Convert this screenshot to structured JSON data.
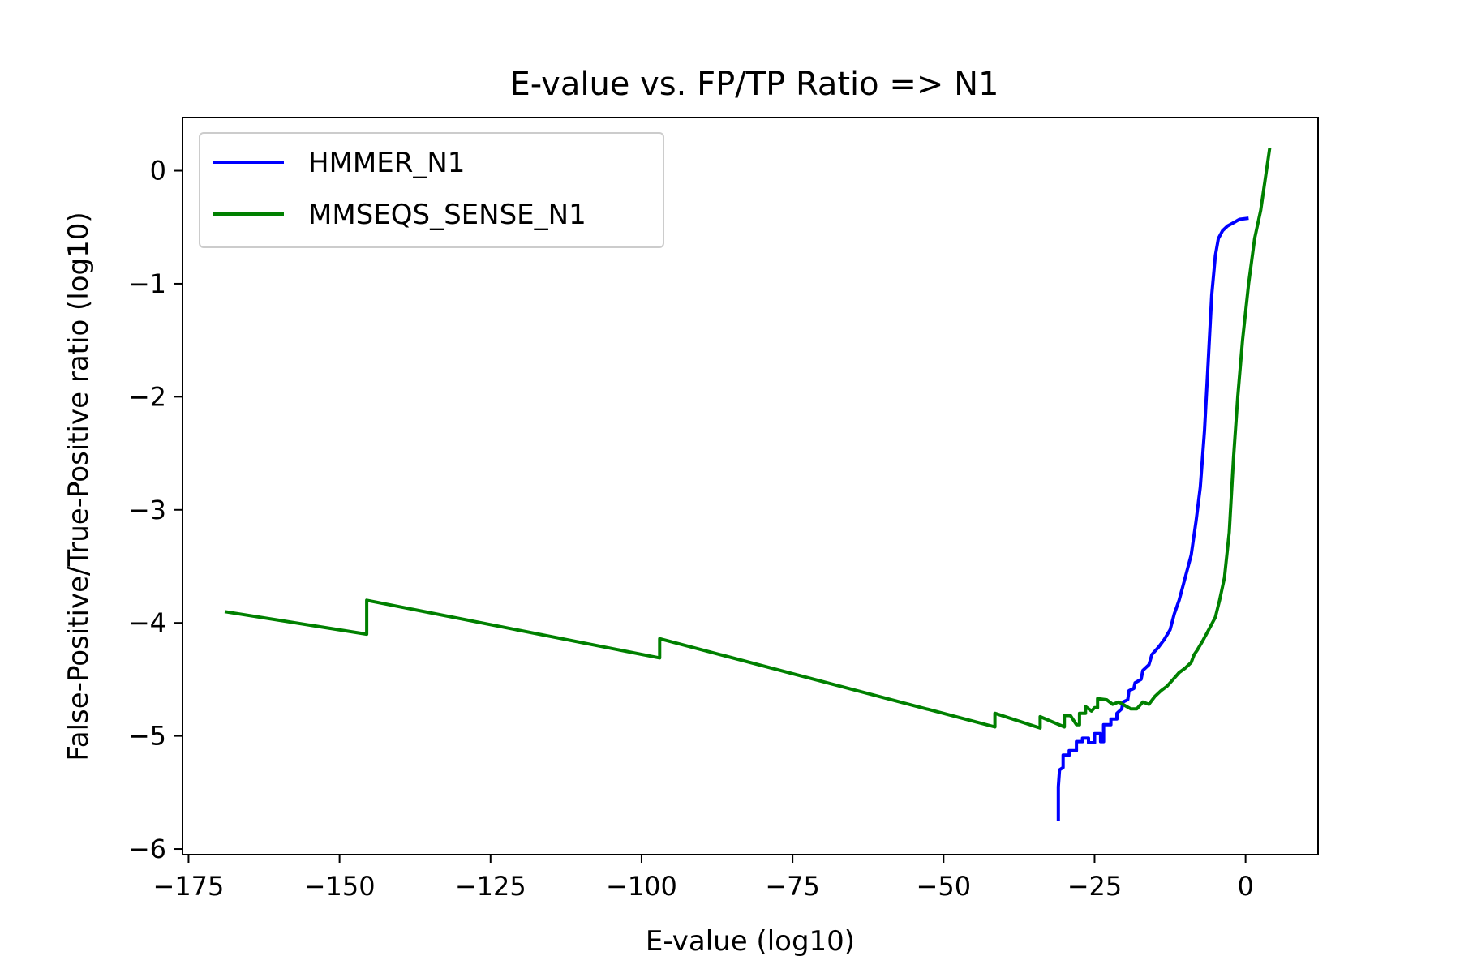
{
  "chart_data": {
    "type": "line",
    "title": "E-value vs. FP/TP Ratio => N1",
    "xlabel": "E-value (log10)",
    "ylabel": "False-Positive/True-Positive ratio (log10)",
    "xlim": [
      -176,
      12
    ],
    "ylim": [
      -6.05,
      0.47
    ],
    "x_ticks": [
      -175,
      -150,
      -125,
      -100,
      -75,
      -50,
      -25,
      0
    ],
    "x_tick_labels": [
      "−175",
      "−150",
      "−125",
      "−100",
      "−75",
      "−50",
      "−25",
      "0"
    ],
    "y_ticks": [
      0,
      -1,
      -2,
      -3,
      -4,
      -5,
      -6
    ],
    "y_tick_labels": [
      "0",
      "−1",
      "−2",
      "−3",
      "−4",
      "−5",
      "−6"
    ],
    "grid": false,
    "legend_position": "upper-left",
    "series": [
      {
        "name": "HMMER_N1",
        "color": "#0000ff",
        "points": [
          [
            -31,
            -5.75
          ],
          [
            -31,
            -5.45
          ],
          [
            -30.8,
            -5.3
          ],
          [
            -30.2,
            -5.28
          ],
          [
            -30.2,
            -5.17
          ],
          [
            -29.2,
            -5.17
          ],
          [
            -29.2,
            -5.13
          ],
          [
            -28,
            -5.13
          ],
          [
            -28,
            -5.05
          ],
          [
            -27,
            -5.05
          ],
          [
            -27,
            -5.02
          ],
          [
            -26,
            -5.02
          ],
          [
            -26,
            -5.06
          ],
          [
            -25,
            -5.06
          ],
          [
            -25,
            -4.98
          ],
          [
            -24,
            -4.98
          ],
          [
            -24,
            -5.05
          ],
          [
            -23.5,
            -5.05
          ],
          [
            -23.5,
            -4.9
          ],
          [
            -22.3,
            -4.9
          ],
          [
            -22.3,
            -4.85
          ],
          [
            -21.3,
            -4.85
          ],
          [
            -21.3,
            -4.8
          ],
          [
            -20.5,
            -4.76
          ],
          [
            -20.3,
            -4.7
          ],
          [
            -19.5,
            -4.68
          ],
          [
            -19.3,
            -4.6
          ],
          [
            -18.5,
            -4.58
          ],
          [
            -18.3,
            -4.53
          ],
          [
            -17.3,
            -4.5
          ],
          [
            -17,
            -4.42
          ],
          [
            -16,
            -4.37
          ],
          [
            -15.5,
            -4.28
          ],
          [
            -14.5,
            -4.22
          ],
          [
            -13.5,
            -4.15
          ],
          [
            -12.5,
            -4.06
          ],
          [
            -11.8,
            -3.92
          ],
          [
            -11,
            -3.8
          ],
          [
            -10,
            -3.6
          ],
          [
            -9,
            -3.4
          ],
          [
            -8.2,
            -3.1
          ],
          [
            -7.5,
            -2.8
          ],
          [
            -6.8,
            -2.3
          ],
          [
            -6.2,
            -1.7
          ],
          [
            -5.6,
            -1.1
          ],
          [
            -5,
            -0.75
          ],
          [
            -4.5,
            -0.6
          ],
          [
            -3.8,
            -0.53
          ],
          [
            -3,
            -0.49
          ],
          [
            -2,
            -0.46
          ],
          [
            -1,
            -0.43
          ],
          [
            0.5,
            -0.42
          ]
        ]
      },
      {
        "name": "MMSEQS_SENSE_N1",
        "color": "#008000",
        "points": [
          [
            -169,
            -3.9
          ],
          [
            -145.5,
            -4.1
          ],
          [
            -145.5,
            -3.8
          ],
          [
            -97,
            -4.31
          ],
          [
            -97,
            -4.14
          ],
          [
            -41.5,
            -4.92
          ],
          [
            -41.5,
            -4.8
          ],
          [
            -34,
            -4.93
          ],
          [
            -34,
            -4.83
          ],
          [
            -30,
            -4.92
          ],
          [
            -30,
            -4.82
          ],
          [
            -29,
            -4.82
          ],
          [
            -28,
            -4.9
          ],
          [
            -27.5,
            -4.9
          ],
          [
            -27.5,
            -4.8
          ],
          [
            -26.5,
            -4.8
          ],
          [
            -26.5,
            -4.74
          ],
          [
            -25.5,
            -4.78
          ],
          [
            -25,
            -4.75
          ],
          [
            -24.5,
            -4.75
          ],
          [
            -24.5,
            -4.67
          ],
          [
            -23,
            -4.68
          ],
          [
            -22,
            -4.72
          ],
          [
            -21,
            -4.7
          ],
          [
            -20,
            -4.73
          ],
          [
            -19,
            -4.76
          ],
          [
            -18,
            -4.76
          ],
          [
            -17,
            -4.7
          ],
          [
            -16,
            -4.72
          ],
          [
            -15,
            -4.65
          ],
          [
            -14,
            -4.6
          ],
          [
            -13,
            -4.56
          ],
          [
            -12,
            -4.5
          ],
          [
            -11,
            -4.44
          ],
          [
            -10,
            -4.4
          ],
          [
            -9,
            -4.35
          ],
          [
            -8.5,
            -4.28
          ],
          [
            -8,
            -4.24
          ],
          [
            -7,
            -4.15
          ],
          [
            -6,
            -4.05
          ],
          [
            -5,
            -3.95
          ],
          [
            -4.3,
            -3.8
          ],
          [
            -3.5,
            -3.6
          ],
          [
            -2.7,
            -3.2
          ],
          [
            -2,
            -2.55
          ],
          [
            -1.3,
            -2.0
          ],
          [
            -0.5,
            -1.5
          ],
          [
            0.5,
            -1.0
          ],
          [
            1.5,
            -0.6
          ],
          [
            2.5,
            -0.35
          ],
          [
            4,
            0.2
          ]
        ]
      }
    ]
  }
}
